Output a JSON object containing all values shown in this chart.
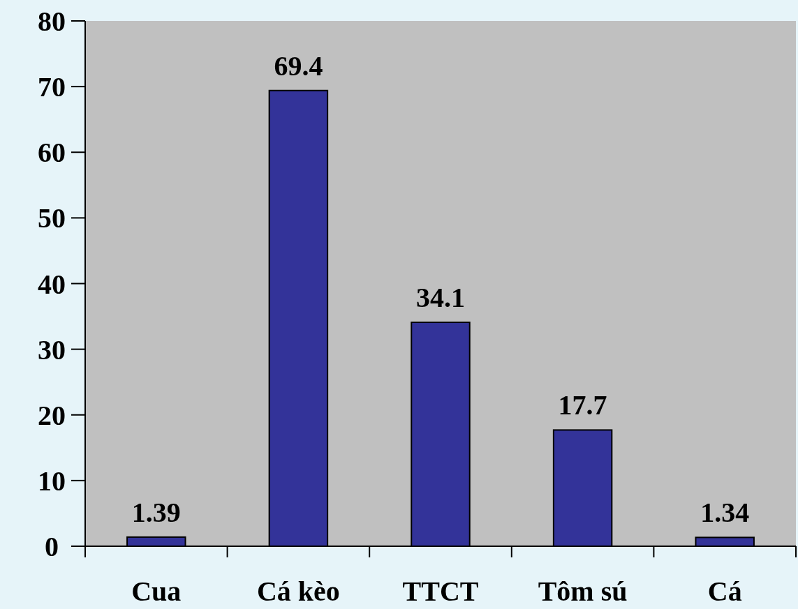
{
  "chart_data": {
    "type": "bar",
    "categories": [
      "Cua",
      "Cá kèo",
      "TTCT",
      "Tôm sú",
      "Cá"
    ],
    "values": [
      1.39,
      69.4,
      34.1,
      17.7,
      1.34
    ],
    "color": "#333399",
    "ylim": [
      0,
      80
    ],
    "yticks": [
      0,
      10,
      20,
      30,
      40,
      50,
      60,
      70,
      80
    ],
    "data_labels": true
  }
}
